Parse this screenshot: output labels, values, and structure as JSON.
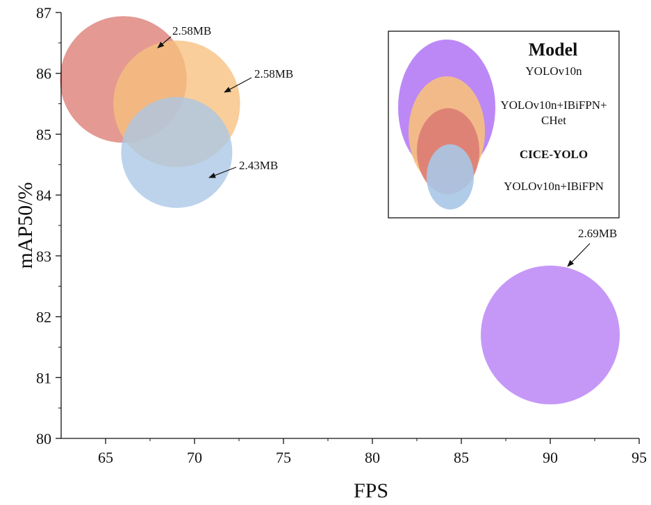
{
  "chart_data": {
    "type": "bubble",
    "xlabel": "FPS",
    "ylabel": "mAP50/%",
    "xlim": [
      62.5,
      95
    ],
    "ylim": [
      80,
      87
    ],
    "xticks": [
      65,
      70,
      75,
      80,
      85,
      90,
      95
    ],
    "yticks": [
      80,
      81,
      82,
      83,
      84,
      85,
      86,
      87
    ],
    "grid": false,
    "legend": {
      "title": "Model",
      "placement": "top-right",
      "entries": [
        {
          "name": "YOLOv10n",
          "color": "#b57bf5"
        },
        {
          "name": "YOLOv10n+IBiFPN+\nCHet",
          "color": "#f7c07d"
        },
        {
          "name": "CICE-YOLO",
          "color": "#dd7c74"
        },
        {
          "name": "YOLOv10n+IBiFPN",
          "color": "#a9c6e6"
        }
      ]
    },
    "points": [
      {
        "model": "CICE-YOLO",
        "x": 66,
        "y": 85.9,
        "size_mb": 2.58,
        "label": "2.58MB",
        "color": "#dd7c74"
      },
      {
        "model": "YOLOv10n+IBiFPN+CHet",
        "x": 69,
        "y": 85.5,
        "size_mb": 2.58,
        "label": "2.58MB",
        "color": "#f7c07d"
      },
      {
        "model": "YOLOv10n+IBiFPN",
        "x": 69,
        "y": 84.7,
        "size_mb": 2.43,
        "label": "2.43MB",
        "color": "#a9c6e6"
      },
      {
        "model": "YOLOv10n",
        "x": 90,
        "y": 81.7,
        "size_mb": 2.69,
        "label": "2.69MB",
        "color": "#b57bf5"
      }
    ]
  }
}
